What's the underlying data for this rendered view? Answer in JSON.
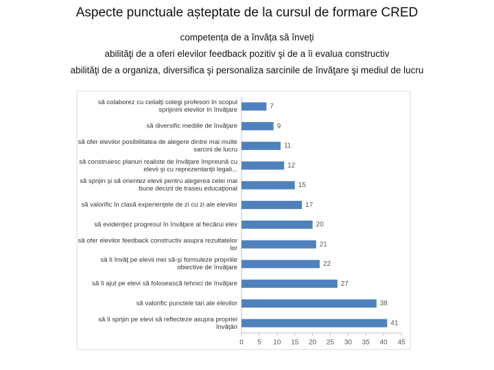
{
  "chart_data": {
    "type": "hbar",
    "title": "Aspecte punctuale așteptate de la cursul de formare CRED",
    "subtitle": [
      "competența de a învăța să înveți",
      "abilităţi de a oferi elevilor feedback pozitiv şi de a îi evalua constructiv",
      "abilităţi de a organiza, diversifica şi personaliza sarcinile de învăţare şi mediul de lucru"
    ],
    "categories": [
      "să colaborez cu ceilalţi colegi profesori în scopul sprijinirii elevilor în învăţare",
      "să diversific mediile de învăţare",
      "să ofer elevilor posibilitatea de alegere dintre mai multe sarcini de lucru",
      "să construiesc planuri realiste de învăţare împreună cu elevii şi cu reprezentanţii legali...",
      "să sprijin şi să orientez elevii pentru alegerea celei mai bune decizii de traseu educaţional",
      "să valorific în clasă experienţele de zi cu zi ale elevilor",
      "să evidenţiez progresul în învăţare al fiecărui elev",
      "să ofer elevilor feedback constructiv asupra rezultatelor lor",
      "să îi învăţ pe elevii mei să-şi formuleze propriile obiective de învăţare",
      "să îi ajut pe elevi să folosească tehnici de învăţare",
      "să valorific punctele tari ale elevilor",
      "să îi sprijin pe elevi să reflecteze asupra propriei învăţări"
    ],
    "values": [
      7,
      9,
      11,
      12,
      15,
      17,
      20,
      21,
      22,
      27,
      38,
      41
    ],
    "color": "#4f81bd",
    "xlim": [
      0,
      45
    ],
    "xticks": [
      0,
      5,
      10,
      15,
      20,
      25,
      30,
      35,
      40,
      45
    ],
    "grid": false
  }
}
